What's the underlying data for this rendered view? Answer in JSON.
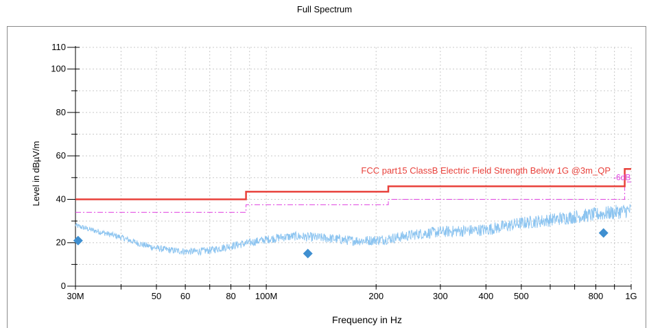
{
  "page_title": "Full Spectrum",
  "chart_data": {
    "type": "line",
    "title": "Full Spectrum",
    "xlabel": "Frequency in Hz",
    "ylabel": "Level in dBµV/m",
    "x_scale": "log",
    "xlim_hz": [
      30000000,
      1000000000
    ],
    "ylim": [
      0,
      110
    ],
    "grid": true,
    "y_ticks": [
      {
        "value": 0,
        "label": "0"
      },
      {
        "value": 20,
        "label": "20"
      },
      {
        "value": 40,
        "label": "40"
      },
      {
        "value": 60,
        "label": "60"
      },
      {
        "value": 80,
        "label": "80"
      },
      {
        "value": 100,
        "label": "100"
      },
      {
        "value": 110,
        "label": "110"
      }
    ],
    "y_minor_ticks": [
      10,
      30,
      50,
      70,
      90
    ],
    "x_ticks": [
      {
        "value": 30000000,
        "label": "30M"
      },
      {
        "value": 50000000,
        "label": "50"
      },
      {
        "value": 60000000,
        "label": "60"
      },
      {
        "value": 80000000,
        "label": "80"
      },
      {
        "value": 100000000,
        "label": "100M"
      },
      {
        "value": 200000000,
        "label": "200"
      },
      {
        "value": 300000000,
        "label": "300"
      },
      {
        "value": 400000000,
        "label": "400"
      },
      {
        "value": 500000000,
        "label": "500"
      },
      {
        "value": 800000000,
        "label": "800"
      },
      {
        "value": 1000000000,
        "label": "1G"
      }
    ],
    "x_grid_hz": [
      40000000,
      50000000,
      60000000,
      70000000,
      80000000,
      90000000,
      100000000,
      200000000,
      300000000,
      400000000,
      500000000,
      600000000,
      700000000,
      800000000,
      900000000
    ],
    "limit_line": {
      "label": "FCC part15 ClassB Electric Field Strength Below 1G @3m_QP",
      "color": "#e8403a",
      "points": [
        [
          30000000,
          40
        ],
        [
          88000000,
          40
        ],
        [
          88000000,
          43.5
        ],
        [
          216000000,
          43.5
        ],
        [
          216000000,
          46
        ],
        [
          960000000,
          46
        ],
        [
          960000000,
          54
        ],
        [
          1000000000,
          54
        ]
      ]
    },
    "margin_line": {
      "label": "-6dB",
      "color": "#e040e0",
      "points": [
        [
          30000000,
          34
        ],
        [
          88000000,
          34
        ],
        [
          88000000,
          37.5
        ],
        [
          216000000,
          37.5
        ],
        [
          216000000,
          40
        ],
        [
          960000000,
          40
        ],
        [
          960000000,
          48
        ],
        [
          1000000000,
          48
        ]
      ]
    },
    "spectrum": {
      "color": "#8cc4f0",
      "points": [
        [
          30000000,
          28
        ],
        [
          33000000,
          26
        ],
        [
          36000000,
          24.5
        ],
        [
          40000000,
          22.5
        ],
        [
          45000000,
          19.5
        ],
        [
          50000000,
          17.5
        ],
        [
          55000000,
          16.5
        ],
        [
          60000000,
          16
        ],
        [
          65000000,
          16
        ],
        [
          70000000,
          16.5
        ],
        [
          75000000,
          17.5
        ],
        [
          80000000,
          18.5
        ],
        [
          90000000,
          20
        ],
        [
          100000000,
          21.5
        ],
        [
          110000000,
          22.5
        ],
        [
          120000000,
          23
        ],
        [
          135000000,
          22.5
        ],
        [
          150000000,
          22
        ],
        [
          170000000,
          21
        ],
        [
          190000000,
          21
        ],
        [
          210000000,
          21.5
        ],
        [
          230000000,
          22.5
        ],
        [
          260000000,
          24
        ],
        [
          300000000,
          25
        ],
        [
          350000000,
          25.5
        ],
        [
          400000000,
          26
        ],
        [
          450000000,
          27.5
        ],
        [
          500000000,
          29
        ],
        [
          600000000,
          30.5
        ],
        [
          700000000,
          32
        ],
        [
          800000000,
          33
        ],
        [
          900000000,
          34
        ],
        [
          1000000000,
          35
        ]
      ]
    },
    "qp_markers": {
      "color": "#3f8fd0",
      "points": [
        [
          30500000,
          21
        ],
        [
          130000000,
          15
        ],
        [
          840000000,
          24.5
        ]
      ]
    }
  }
}
